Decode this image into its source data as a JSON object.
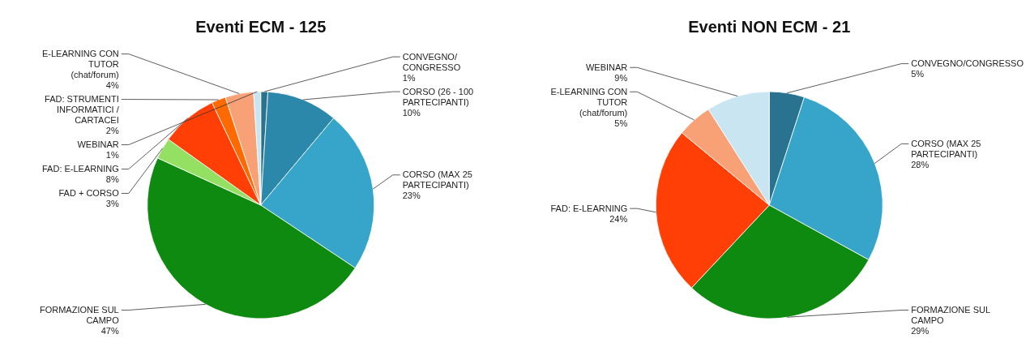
{
  "chart_data": [
    {
      "type": "pie",
      "title": "Eventi ECM - 125",
      "categories": [
        "CONVEGNO/ CONGRESSO",
        "CORSO (26 - 100 PARTECIPANTI)",
        "CORSO (MAX 25 PARTECIPANTI)",
        "FORMAZIONE SUL CAMPO",
        "FAD + CORSO",
        "FAD: E-LEARNING",
        "FAD: STRUMENTI INFORMATICI / CARTACEI",
        "E-LEARNING CON TUTOR (chat/forum)",
        "WEBINAR"
      ],
      "values": [
        1,
        10,
        23,
        47,
        3,
        8,
        2,
        4,
        1
      ],
      "value_labels": [
        "1%",
        "10%",
        "23%",
        "47%",
        "3%",
        "8%",
        "2%",
        "4%",
        "1%"
      ],
      "colors": [
        "#2a7390",
        "#2b88aa",
        "#36a5c9",
        "#0f8a10",
        "#93e063",
        "#ff3f05",
        "#ff6a00",
        "#f8a177",
        "#c9e5f1"
      ]
    },
    {
      "type": "pie",
      "title": "Eventi NON ECM - 21",
      "categories": [
        "CONVEGNO/CONGRESSO",
        "CORSO (MAX 25 PARTECIPANTI)",
        "FORMAZIONE SUL CAMPO",
        "FAD: E-LEARNING",
        "E-LEARNING CON TUTOR (chat/forum)",
        "WEBINAR"
      ],
      "values": [
        5,
        28,
        29,
        24,
        5,
        9
      ],
      "value_labels": [
        "5%",
        "28%",
        "29%",
        "24%",
        "5%",
        "9%"
      ],
      "colors": [
        "#2a7390",
        "#36a5c9",
        "#0f8a10",
        "#ff3f05",
        "#f8a177",
        "#c9e5f1"
      ]
    }
  ]
}
